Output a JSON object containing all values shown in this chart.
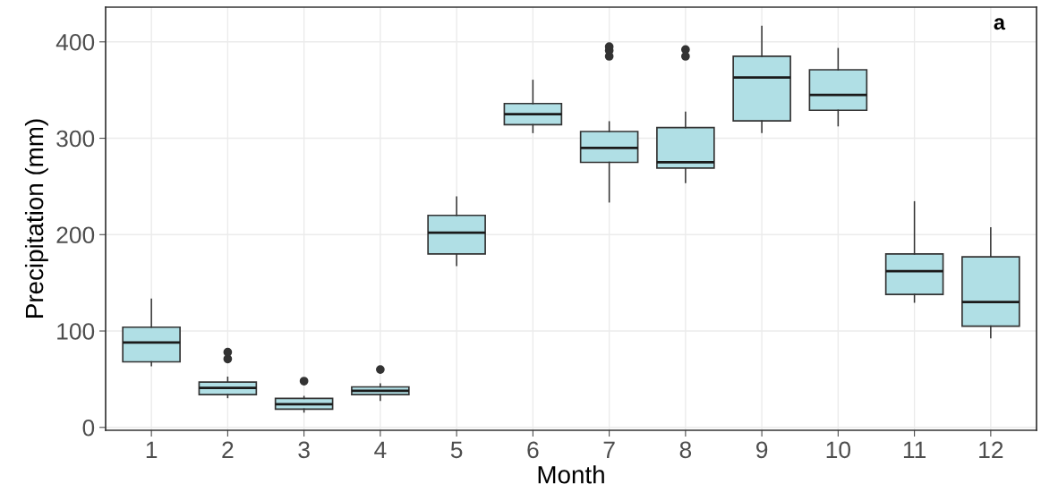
{
  "chart_data": {
    "type": "box",
    "xlabel": "Month",
    "ylabel": "Precipitation (mm)",
    "annotations": [
      "a"
    ],
    "categories": [
      "1",
      "2",
      "3",
      "4",
      "5",
      "6",
      "7",
      "8",
      "9",
      "10",
      "11",
      "12"
    ],
    "color": "#b0dfe5",
    "ylim": [
      -3,
      436
    ],
    "yticks": [
      0,
      100,
      200,
      300,
      400
    ],
    "grid": true,
    "boxes": [
      {
        "low": 64,
        "q1": 68,
        "median": 88,
        "q3": 104,
        "high": 133
      },
      {
        "low": 31,
        "q1": 34,
        "median": 41,
        "q3": 47,
        "high": 52,
        "outliers": [
          71,
          78
        ]
      },
      {
        "low": 16,
        "q1": 19,
        "median": 24,
        "q3": 30,
        "high": 32,
        "outliers": [
          48
        ]
      },
      {
        "low": 28,
        "q1": 34,
        "median": 38,
        "q3": 42,
        "high": 45,
        "outliers": [
          60
        ]
      },
      {
        "low": 168,
        "q1": 180,
        "median": 202,
        "q3": 220,
        "high": 239
      },
      {
        "low": 306,
        "q1": 314,
        "median": 325,
        "q3": 336,
        "high": 360
      },
      {
        "low": 234,
        "q1": 275,
        "median": 290,
        "q3": 307,
        "high": 317,
        "outliers": [
          385,
          391,
          395
        ]
      },
      {
        "low": 254,
        "q1": 269,
        "median": 275,
        "q3": 311,
        "high": 327,
        "outliers": [
          385,
          392
        ]
      },
      {
        "low": 306,
        "q1": 318,
        "median": 363,
        "q3": 385,
        "high": 416
      },
      {
        "low": 313,
        "q1": 329,
        "median": 345,
        "q3": 371,
        "high": 393
      },
      {
        "low": 130,
        "q1": 138,
        "median": 162,
        "q3": 180,
        "high": 234
      },
      {
        "low": 93,
        "q1": 105,
        "median": 130,
        "q3": 177,
        "high": 207
      }
    ]
  }
}
